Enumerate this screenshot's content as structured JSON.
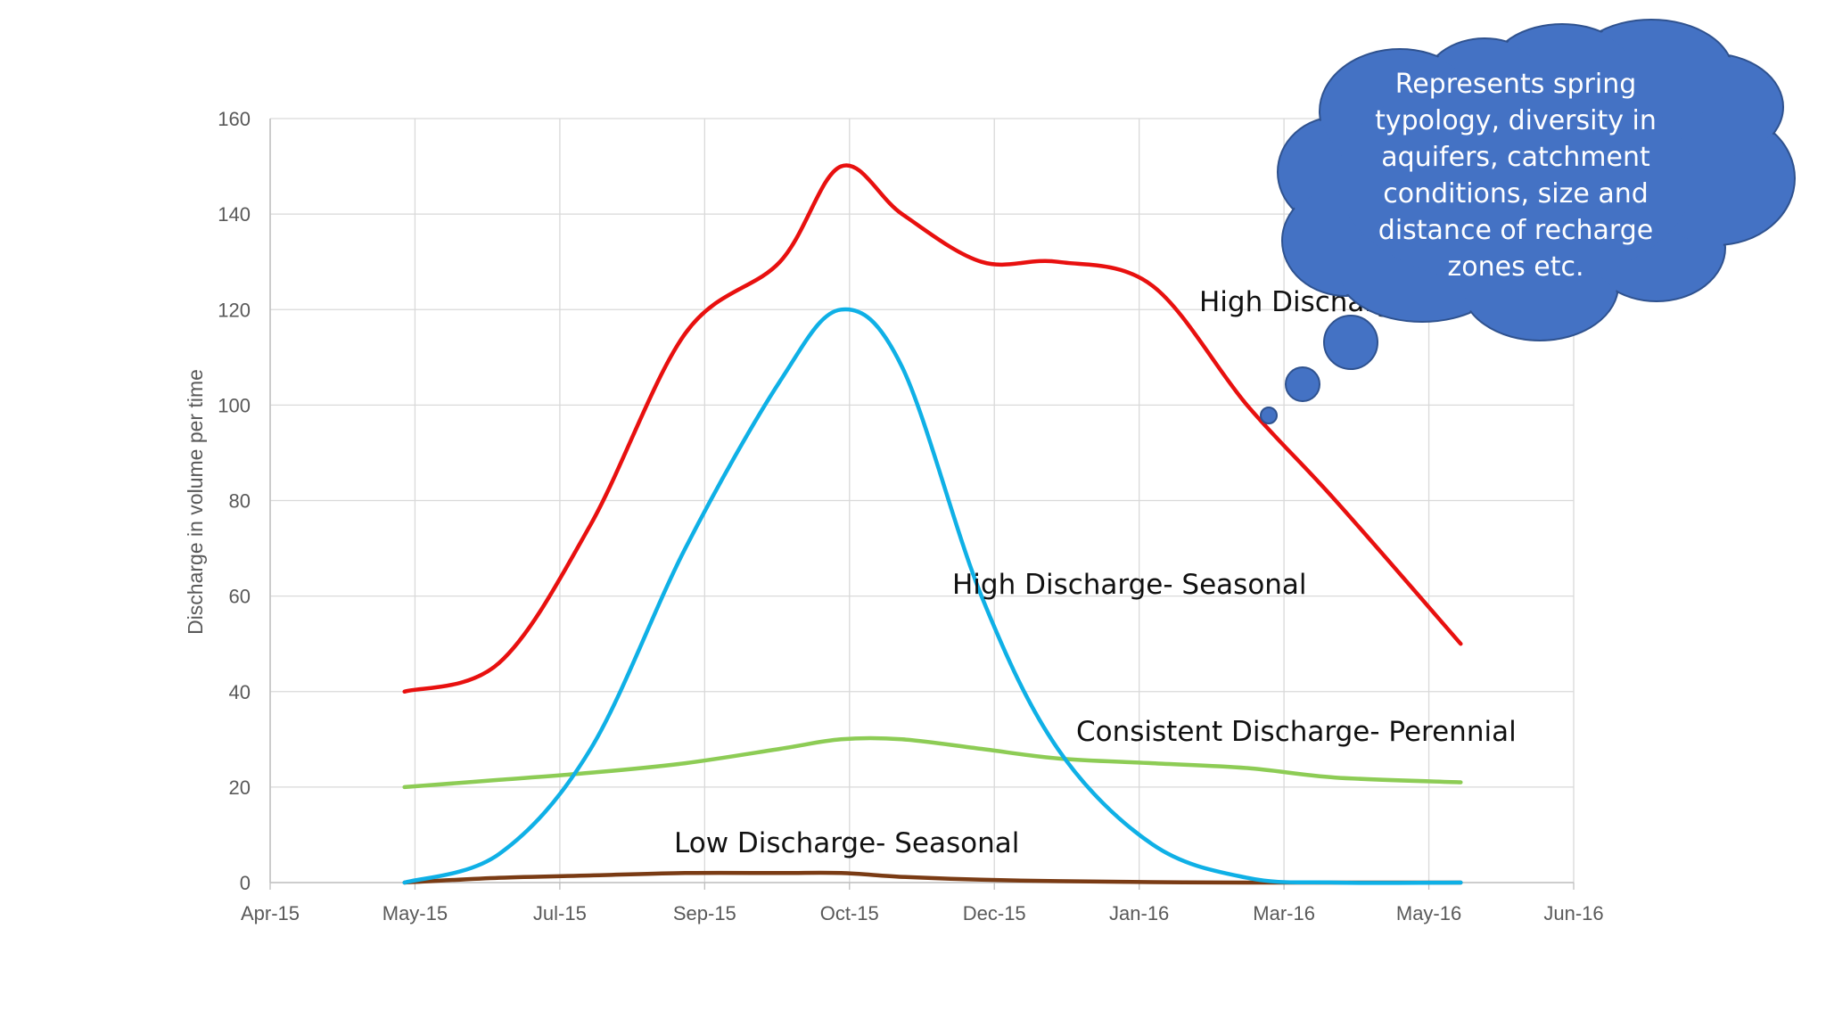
{
  "chart_data": {
    "type": "line",
    "x": [
      "2015-05-15",
      "2015-06-15",
      "2015-07-15",
      "2015-08-15",
      "2015-09-15",
      "2015-10-05",
      "2015-10-25",
      "2015-11-20",
      "2015-12-15",
      "2016-01-15",
      "2016-02-15",
      "2016-03-15",
      "2016-04-25"
    ],
    "x_ticks": [
      "Apr-15",
      "May-15",
      "Jul-15",
      "Sep-15",
      "Oct-15",
      "Dec-15",
      "Jan-16",
      "Mar-16",
      "May-16",
      "Jun-16"
    ],
    "y_ticks": [
      "0",
      "20",
      "40",
      "60",
      "80",
      "100",
      "120",
      "140",
      "160"
    ],
    "ylim": [
      0,
      160
    ],
    "ylabel": "Discharge in volume per time",
    "xlabel": "",
    "title": "",
    "grid": true,
    "series": [
      {
        "name": "High Discharge- Perennial",
        "color": "#e8100f",
        "values": [
          40,
          46,
          75,
          115,
          130,
          150,
          140,
          130,
          130,
          125,
          100,
          80,
          50
        ]
      },
      {
        "name": "High Discharge- Seasonal",
        "color": "#0fb0e6",
        "values": [
          0,
          6,
          28,
          70,
          105,
          120,
          108,
          60,
          28,
          8,
          1,
          0,
          0
        ]
      },
      {
        "name": "Consistent Discharge- Perennial",
        "color": "#8dcc55",
        "values": [
          20,
          21.5,
          23,
          25,
          28,
          30,
          30,
          28,
          26,
          25,
          24,
          22,
          21
        ]
      },
      {
        "name": "Low Discharge- Seasonal",
        "color": "#7a3b14",
        "values": [
          0,
          1,
          1.5,
          2,
          2,
          2,
          1.2,
          0.6,
          0.3,
          0.1,
          0,
          0,
          0
        ]
      }
    ]
  },
  "labels": {
    "high_perennial": "High Discharge- Perennial",
    "high_seasonal": "High Discharge- Seasonal",
    "consistent": "Consistent Discharge- Perennial",
    "low_seasonal": "Low Discharge- Seasonal"
  },
  "callout": {
    "lines": [
      "Represents spring",
      "typology, diversity in",
      "aquifers, catchment",
      "conditions, size and",
      "distance of recharge",
      "zones etc."
    ],
    "color": "#4472c4"
  }
}
